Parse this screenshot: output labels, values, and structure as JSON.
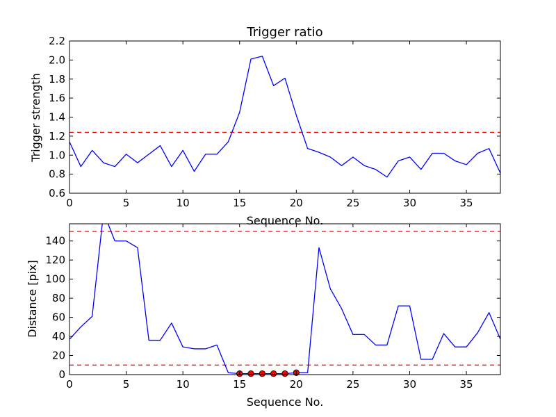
{
  "chart_data": [
    {
      "type": "line",
      "title": "Trigger ratio",
      "xlabel": "Sequence No.",
      "ylabel": "Trigger strength",
      "xlim": [
        0,
        38
      ],
      "ylim": [
        0.6,
        2.2
      ],
      "xticks": [
        "0",
        "5",
        "10",
        "15",
        "20",
        "25",
        "30",
        "35"
      ],
      "yticks": [
        "0.6",
        "0.8",
        "1.0",
        "1.2",
        "1.4",
        "1.6",
        "1.8",
        "2.0",
        "2.2"
      ],
      "grid": false,
      "series": [
        {
          "color": "#0000ff",
          "x": [
            0,
            1,
            2,
            3,
            4,
            5,
            6,
            7,
            8,
            9,
            10,
            11,
            12,
            13,
            14,
            15,
            16,
            17,
            18,
            19,
            20,
            21,
            22,
            23,
            24,
            25,
            26,
            27,
            28,
            29,
            30,
            31,
            32,
            33,
            34,
            35,
            36,
            37,
            38
          ],
          "values": [
            1.14,
            0.88,
            1.05,
            0.92,
            0.88,
            1.01,
            0.92,
            1.01,
            1.1,
            0.88,
            1.05,
            0.83,
            1.01,
            1.01,
            1.14,
            1.45,
            2.01,
            2.04,
            1.73,
            1.81,
            1.42,
            1.07,
            1.03,
            0.98,
            0.89,
            0.98,
            0.89,
            0.85,
            0.77,
            0.94,
            0.98,
            0.85,
            1.02,
            1.02,
            0.94,
            0.9,
            1.02,
            1.07,
            0.81
          ]
        }
      ],
      "hlines": [
        {
          "y": 1.24,
          "color": "#ff0000",
          "style": "dashed"
        }
      ]
    },
    {
      "type": "line",
      "title": "",
      "xlabel": "Sequence No.",
      "ylabel": "Distance [pix]",
      "xlim": [
        0,
        38
      ],
      "ylim": [
        0,
        158
      ],
      "xticks": [
        "0",
        "5",
        "10",
        "15",
        "20",
        "25",
        "30",
        "35"
      ],
      "yticks": [
        "0",
        "20",
        "40",
        "60",
        "80",
        "100",
        "120",
        "140"
      ],
      "grid": false,
      "series": [
        {
          "color": "#0000ff",
          "x": [
            0,
            1,
            2,
            3,
            4,
            5,
            6,
            7,
            8,
            9,
            10,
            11,
            12,
            13,
            14,
            15,
            16,
            17,
            18,
            19,
            20,
            21,
            22,
            23,
            24,
            25,
            26,
            27,
            28,
            29,
            30,
            31,
            32,
            33,
            34,
            35,
            36,
            37,
            38
          ],
          "values": [
            37,
            50,
            61,
            170,
            140,
            140,
            133,
            36,
            36,
            54,
            29,
            27,
            27,
            31,
            2,
            1,
            1,
            1,
            1,
            1,
            2,
            2,
            133,
            90,
            69,
            42,
            42,
            31,
            31,
            72,
            72,
            16,
            16,
            43,
            29,
            29,
            44,
            65,
            37
          ]
        }
      ],
      "markers": {
        "color": "#ff0000",
        "x": [
          15,
          16,
          17,
          18,
          19,
          20
        ],
        "y": [
          1,
          1,
          1,
          1,
          1,
          2
        ]
      },
      "hlines": [
        {
          "y": 150,
          "color": "#ff0000",
          "style": "dashed"
        },
        {
          "y": 10,
          "color": "#ff0000",
          "style": "dashed"
        }
      ]
    }
  ]
}
